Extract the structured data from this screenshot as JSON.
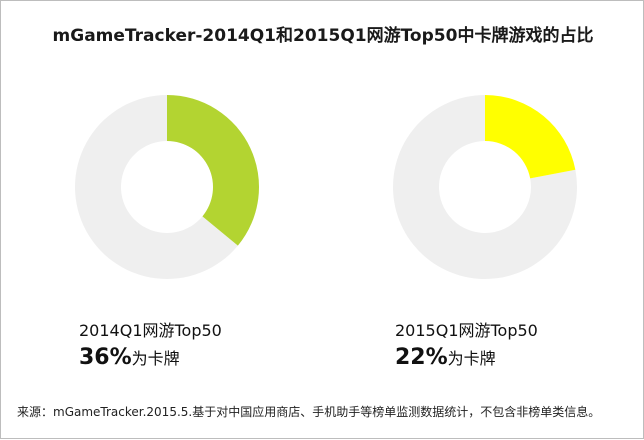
{
  "chart_data": {
    "type": "pie",
    "title": "mGameTracker-2014Q1和2015Q1网游Top50中卡牌游戏的占比",
    "charts": [
      {
        "series": "2014Q1网游Top50",
        "value_label": "36%",
        "suffix": "为卡牌",
        "share": 0.36,
        "color": "#b3d431",
        "remainder_color": "#efefef"
      },
      {
        "series": "2015Q1网游Top50",
        "value_label": "22%",
        "suffix": "为卡牌",
        "share": 0.22,
        "color": "#ffff00",
        "remainder_color": "#efefef"
      }
    ]
  },
  "source": "来源：mGameTracker.2015.5.基于对中国应用商店、手机助手等榜单监测数据统计，不包含非榜单类信息。"
}
